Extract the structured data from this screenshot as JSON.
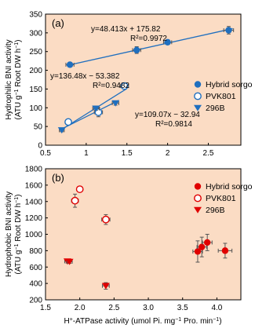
{
  "colors": {
    "plot_bg": "#fbdcc4",
    "blue": "#1f6fbf",
    "red": "#e00000",
    "frame": "#000000"
  },
  "ylabel": {
    "line1": "Hydrophilic BNI activity",
    "line2": "(ATU g",
    "line2_sup": "−1",
    "line2_rest": " Root DW h",
    "line2_sup2": "−1",
    "line2_end": ")"
  },
  "ylabel_b": {
    "line1": "Hydrophobic BNI activity",
    "line2": "(ATU g",
    "line2_sup": "−1",
    "line2_rest": " Root DW h",
    "line2_sup2": "−1",
    "line2_end": ")"
  },
  "xlabel": {
    "pre": "H",
    "sup": "+",
    "main": "-ATPase activity (umol Pi. mg",
    "sup2": "−1",
    "end": " Pro. min",
    "sup3": "−1",
    "close": ")"
  },
  "chart_data": [
    {
      "type": "scatter",
      "panel": "(a)",
      "xlim": [
        0.5,
        2.9
      ],
      "ylim": [
        0,
        350
      ],
      "xticks": [
        0.5,
        1,
        1.5,
        2,
        2.5
      ],
      "yticks": [
        0,
        50,
        100,
        150,
        200,
        250,
        300,
        350
      ],
      "xtick_labels": [
        "0.5",
        "1",
        "1.5",
        "2",
        "2.5"
      ],
      "ytick_labels": [
        "0",
        "50",
        "100",
        "150",
        "200",
        "250",
        "300",
        "350"
      ],
      "legend": [
        "Hybrid sorgo",
        "PVK801",
        "296B"
      ],
      "series": [
        {
          "name": "Hybrid sorgo",
          "marker": "filled-circle",
          "points": [
            [
              0.8,
              215,
              0.05,
              6
            ],
            [
              1.62,
              254,
              0.05,
              9
            ],
            [
              2.0,
              275,
              0.05,
              6
            ],
            [
              2.75,
              307,
              0.06,
              10
            ]
          ],
          "fit": {
            "slope": 48.413,
            "intercept": 175.82,
            "x0": 0.76,
            "x1": 2.8
          }
        },
        {
          "name": "PVK801",
          "marker": "open-circle",
          "points": [
            [
              0.78,
              62,
              0.03,
              6
            ],
            [
              1.15,
              88,
              0.05,
              12
            ],
            [
              1.47,
              158,
              0.05,
              7
            ]
          ],
          "fit": {
            "slope": 136.48,
            "intercept": -53.382,
            "x0": 0.7,
            "x1": 1.5
          }
        },
        {
          "name": "296B",
          "marker": "filled-triangle-down",
          "points": [
            [
              0.7,
              40,
              0.03,
              4
            ],
            [
              1.12,
              98,
              0.04,
              5
            ],
            [
              1.36,
              112,
              0.04,
              5
            ]
          ],
          "fit": {
            "slope": 109.07,
            "intercept": -32.94,
            "x0": 0.68,
            "x1": 1.4
          }
        }
      ],
      "annotations": [
        {
          "eq": "y=48.413x + 175.82",
          "r2": "R²=0.9972"
        },
        {
          "eq": "y=136.48x − 53.382",
          "r2": "R²=0.9482"
        },
        {
          "eq": "y=109.07x − 32.94",
          "r2": "R²=0.9814"
        }
      ]
    },
    {
      "type": "scatter",
      "panel": "(b)",
      "xlim": [
        1.5,
        4.35
      ],
      "ylim": [
        200,
        1800
      ],
      "xticks": [
        1.5,
        2,
        2.5,
        3,
        3.5,
        4
      ],
      "yticks": [
        200,
        400,
        600,
        800,
        1000,
        1200,
        1400,
        1600,
        1800
      ],
      "xtick_labels": [
        "1.5",
        "2.0",
        "2.5",
        "3.0",
        "3.5",
        "4.0"
      ],
      "ytick_labels": [
        "200",
        "400",
        "600",
        "800",
        "1000",
        "1200",
        "1400",
        "1600",
        "1800"
      ],
      "legend": [
        "Hybrid sorgo",
        "PVK801",
        "296B"
      ],
      "series": [
        {
          "name": "Hybrid sorgo",
          "marker": "filled-circle",
          "points": [
            [
              3.72,
              790,
              0.07,
              130
            ],
            [
              3.78,
              845,
              0.07,
              120
            ],
            [
              3.86,
              900,
              0.07,
              100
            ],
            [
              4.12,
              800,
              0.1,
              90
            ]
          ]
        },
        {
          "name": "PVK801",
          "marker": "open-circle",
          "points": [
            [
              1.93,
              1410,
              0.05,
              80
            ],
            [
              2.0,
              1550,
              0.04,
              30
            ],
            [
              2.38,
              1180,
              0.06,
              60
            ]
          ]
        },
        {
          "name": "296B",
          "marker": "filled-triangle-down",
          "points": [
            [
              1.82,
              670,
              0.04,
              20
            ],
            [
              1.85,
              665,
              0.04,
              20
            ],
            [
              2.38,
              370,
              0.05,
              40
            ]
          ]
        }
      ]
    }
  ]
}
